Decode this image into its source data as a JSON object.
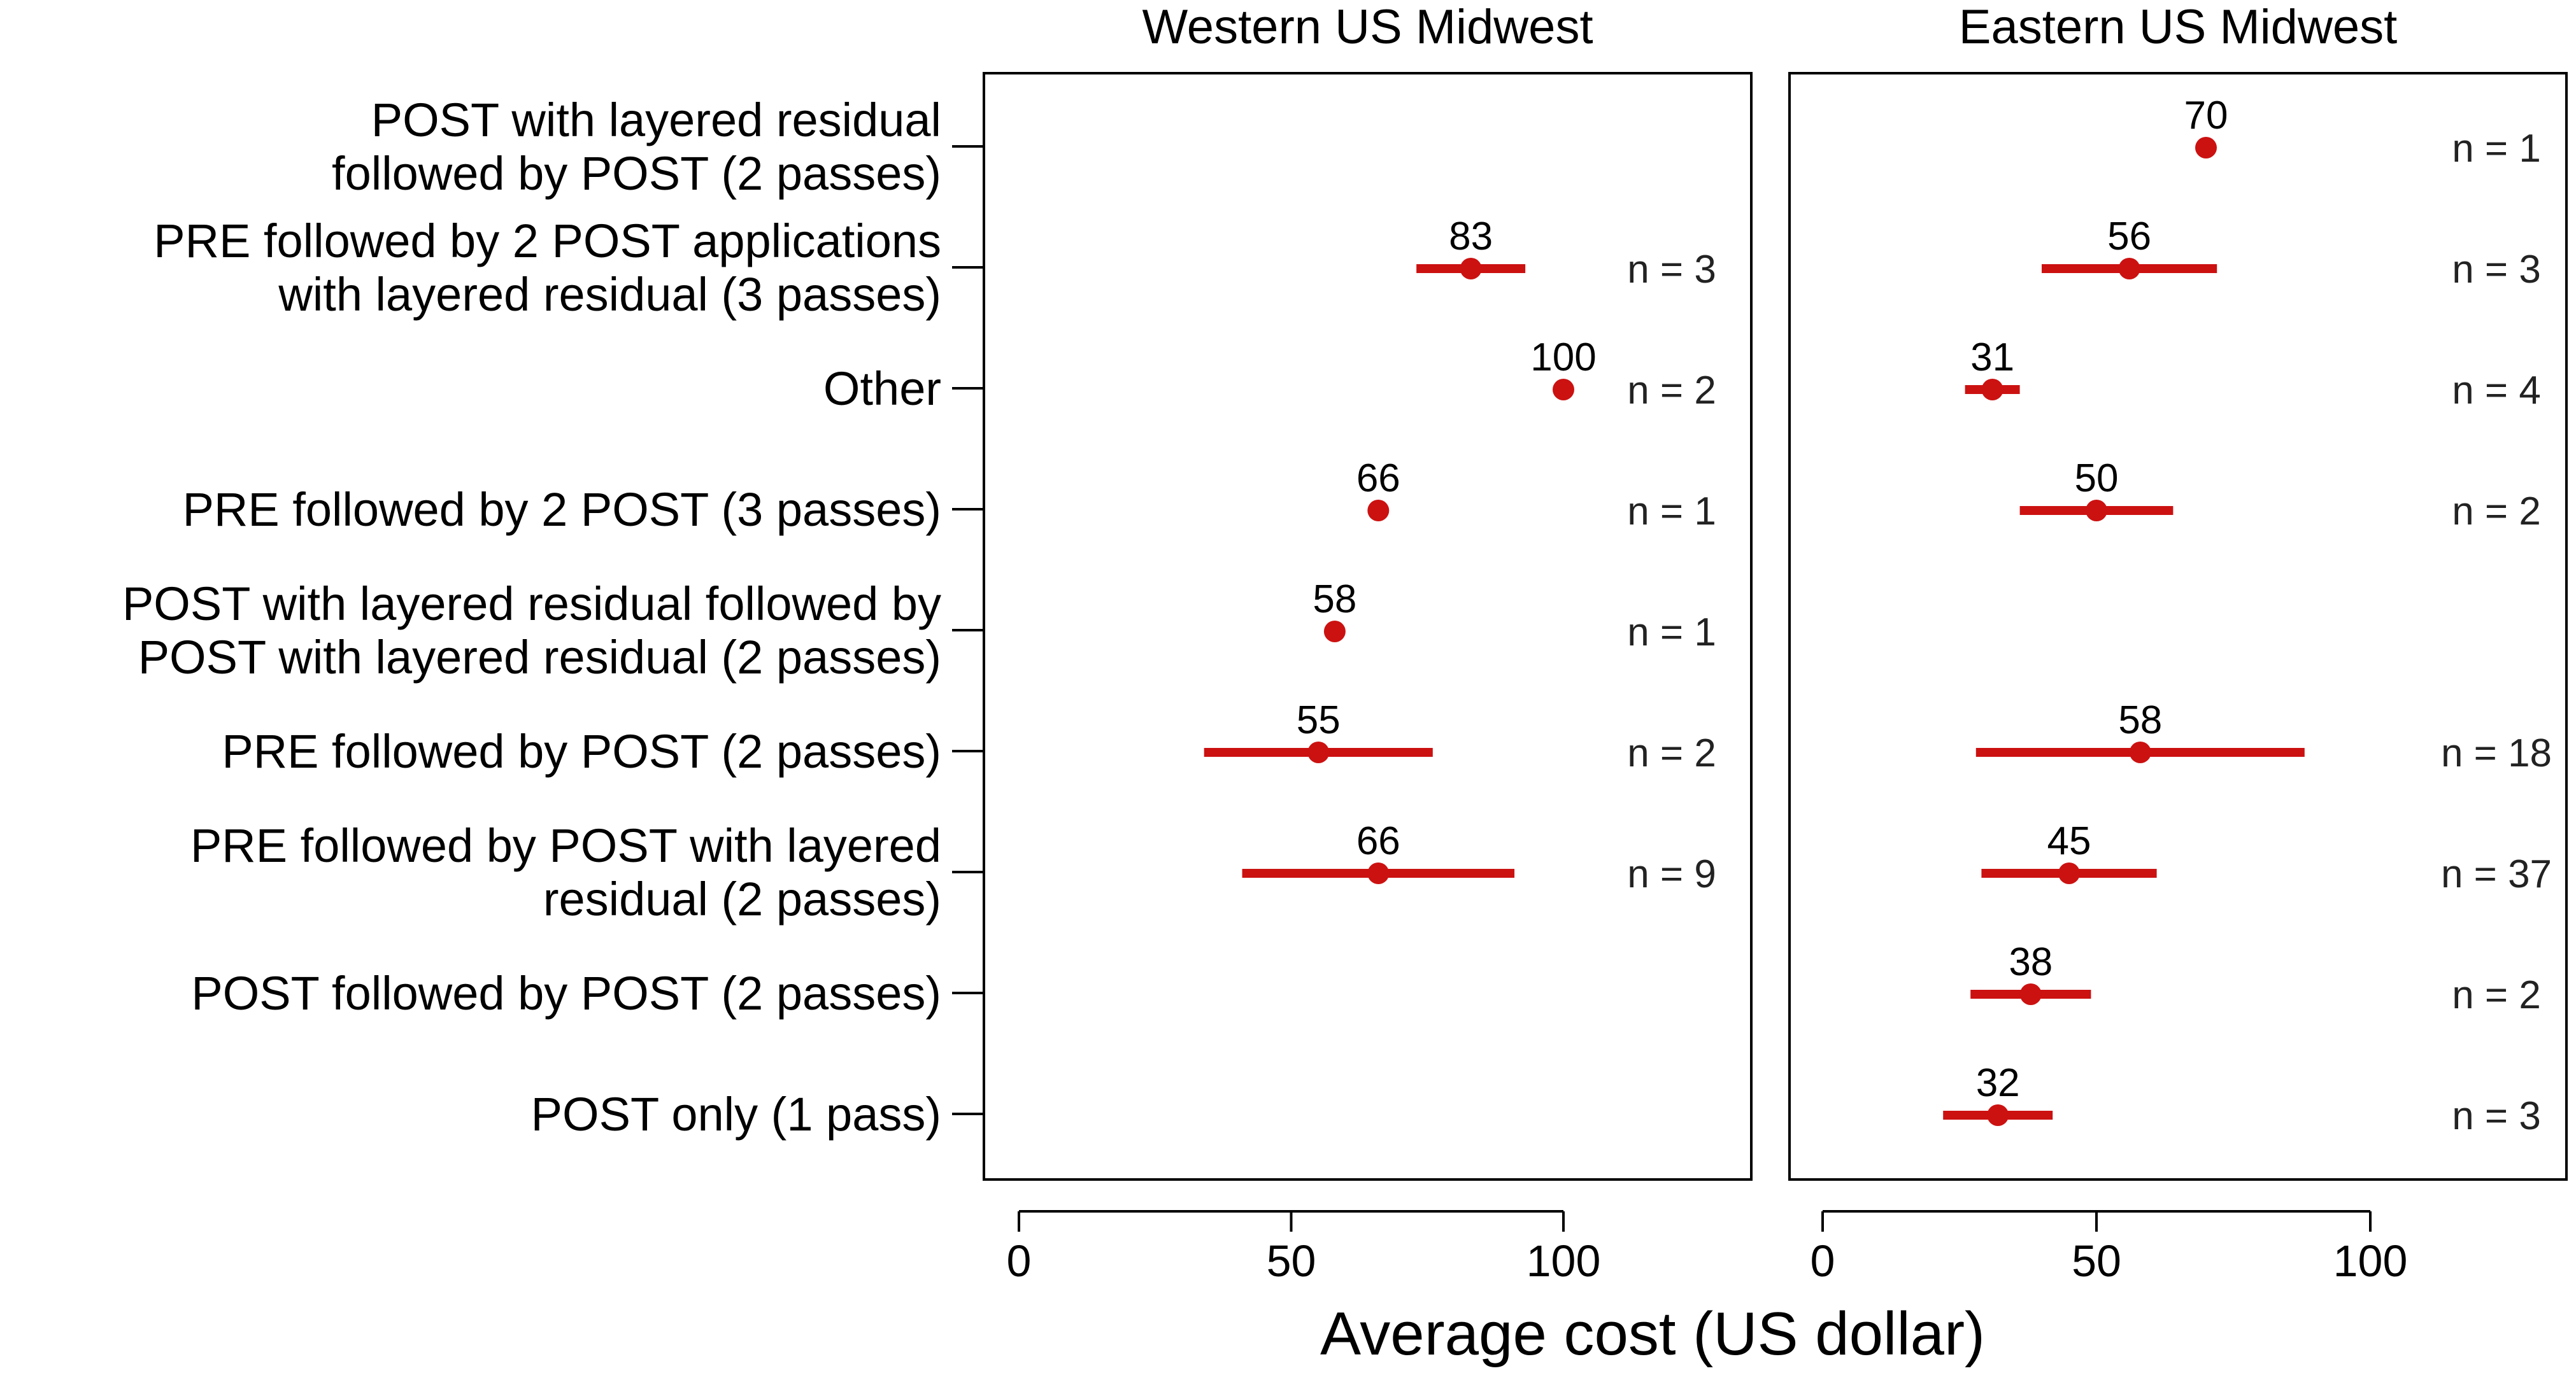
{
  "chart_data": {
    "type": "dot-errorbar",
    "xlabel": "Average cost (US dollar)",
    "xlim": [
      0,
      140
    ],
    "xticks": [
      0,
      50,
      100
    ],
    "color": "#cc1111",
    "categories": [
      [
        "POST with layered residual",
        "followed by POST (2 passes)"
      ],
      [
        "PRE followed by 2 POST applications",
        "with layered residual (3 passes)"
      ],
      [
        "Other"
      ],
      [
        "PRE followed by 2 POST (3 passes)"
      ],
      [
        "POST with layered residual followed by",
        "POST with layered residual (2 passes)"
      ],
      [
        "PRE followed by POST (2 passes)"
      ],
      [
        "PRE followed by POST with layered",
        "residual (2 passes)"
      ],
      [
        "POST followed by POST (2 passes)"
      ],
      [
        "POST only (1 pass)"
      ]
    ],
    "panels": [
      {
        "title": "Western US Midwest",
        "points": [
          null,
          {
            "mean": 83,
            "low": 73,
            "high": 93,
            "label": "83",
            "n": "n = 3"
          },
          {
            "mean": 100,
            "low": null,
            "high": null,
            "label": "100",
            "n": "n = 2"
          },
          {
            "mean": 66,
            "low": null,
            "high": null,
            "label": "66",
            "n": "n = 1"
          },
          {
            "mean": 58,
            "low": null,
            "high": null,
            "label": "58",
            "n": "n = 1"
          },
          {
            "mean": 55,
            "low": 34,
            "high": 76,
            "label": "55",
            "n": "n = 2"
          },
          {
            "mean": 66,
            "low": 41,
            "high": 91,
            "label": "66",
            "n": "n = 9"
          },
          null,
          null
        ]
      },
      {
        "title": "Eastern US Midwest",
        "points": [
          {
            "mean": 70,
            "low": null,
            "high": null,
            "label": "70",
            "n": "n = 1"
          },
          {
            "mean": 56,
            "low": 40,
            "high": 72,
            "label": "56",
            "n": "n = 3"
          },
          {
            "mean": 31,
            "low": 26,
            "high": 36,
            "label": "31",
            "n": "n = 4"
          },
          {
            "mean": 50,
            "low": 36,
            "high": 64,
            "label": "50",
            "n": "n = 2"
          },
          null,
          {
            "mean": 58,
            "low": 28,
            "high": 88,
            "label": "58",
            "n": "n = 18"
          },
          {
            "mean": 45,
            "low": 29,
            "high": 61,
            "label": "45",
            "n": "n = 37"
          },
          {
            "mean": 38,
            "low": 27,
            "high": 49,
            "label": "38",
            "n": "n = 2"
          },
          {
            "mean": 32,
            "low": 22,
            "high": 42,
            "label": "32",
            "n": "n = 3"
          }
        ]
      }
    ]
  }
}
